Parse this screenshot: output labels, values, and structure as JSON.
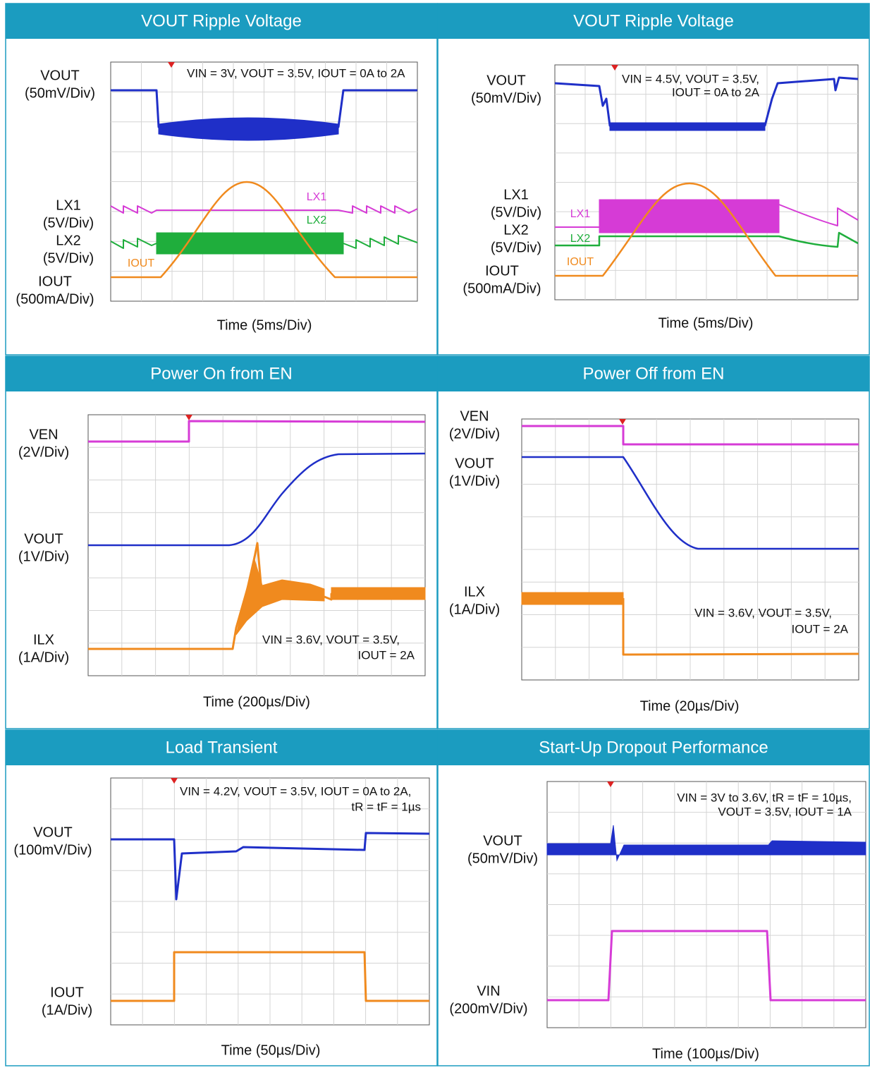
{
  "panels": [
    {
      "title": "VOUT Ripple Voltage",
      "labels": [
        {
          "lines": [
            "VOUT",
            "(50mV/Div)"
          ]
        },
        {
          "lines": [
            "LX1",
            "(5V/Div)"
          ]
        },
        {
          "lines": [
            "LX2",
            "(5V/Div)"
          ]
        },
        {
          "lines": [
            "IOUT",
            "(500mA/Div)"
          ]
        }
      ],
      "tags": [
        "LX1",
        "LX2",
        "IOUT"
      ],
      "conditions": [
        "VIN = 3V, VOUT = 3.5V, IOUT = 0A to 2A"
      ],
      "time": "Time (5ms/Div)"
    },
    {
      "title": "VOUT Ripple Voltage",
      "labels": [
        {
          "lines": [
            "VOUT",
            "(50mV/Div)"
          ]
        },
        {
          "lines": [
            "LX1",
            "(5V/Div)"
          ]
        },
        {
          "lines": [
            "LX2",
            "(5V/Div)"
          ]
        },
        {
          "lines": [
            "IOUT",
            "(500mA/Div)"
          ]
        }
      ],
      "tags": [
        "LX1",
        "LX2",
        "IOUT"
      ],
      "conditions": [
        "VIN = 4.5V, VOUT = 3.5V,",
        "IOUT = 0A to 2A"
      ],
      "time": "Time (5ms/Div)"
    },
    {
      "title": "Power On from EN",
      "labels": [
        {
          "lines": [
            "VEN",
            "(2V/Div)"
          ]
        },
        {
          "lines": [
            "VOUT",
            "(1V/Div)"
          ]
        },
        {
          "lines": [
            "ILX",
            "(1A/Div)"
          ]
        }
      ],
      "tags": [],
      "conditions": [
        "VIN = 3.6V, VOUT = 3.5V,",
        "IOUT = 2A"
      ],
      "time": "Time (200µs/Div)"
    },
    {
      "title": "Power Off from EN",
      "labels": [
        {
          "lines": [
            "VEN",
            "(2V/Div)"
          ]
        },
        {
          "lines": [
            "VOUT",
            "(1V/Div)"
          ]
        },
        {
          "lines": [
            "ILX",
            "(1A/Div)"
          ]
        }
      ],
      "tags": [],
      "conditions": [
        "VIN = 3.6V, VOUT = 3.5V,",
        "IOUT = 2A"
      ],
      "time": "Time (20µs/Div)"
    },
    {
      "title": "Load Transient",
      "labels": [
        {
          "lines": [
            "VOUT",
            "(100mV/Div)"
          ]
        },
        {
          "lines": [
            "IOUT",
            "(1A/Div)"
          ]
        }
      ],
      "tags": [],
      "conditions": [
        "VIN = 4.2V, VOUT = 3.5V, IOUT = 0A to 2A,",
        "tR = tF = 1µs"
      ],
      "time": "Time (50µs/Div)"
    },
    {
      "title": "Start-Up Dropout Performance",
      "labels": [
        {
          "lines": [
            "VOUT",
            "(50mV/Div)"
          ]
        },
        {
          "lines": [
            "VIN",
            "(200mV/Div)"
          ]
        }
      ],
      "tags": [],
      "conditions": [
        "VIN = 3V to 3.6V, tR = tF = 10µs,",
        "VOUT = 3.5V, IOUT = 1A"
      ],
      "time": "Time (100µs/Div)"
    }
  ]
}
